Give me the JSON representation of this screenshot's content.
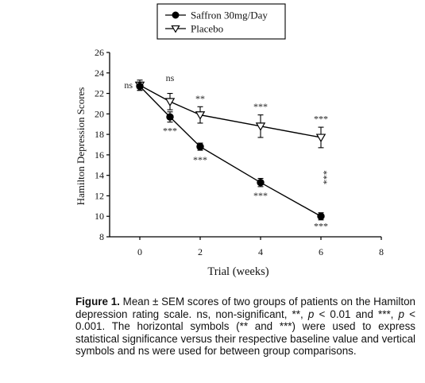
{
  "chart_data": {
    "type": "line",
    "xlabel": "Trial (weeks)",
    "ylabel": "Hamilton Depression Scores",
    "xlim": [
      -1,
      8
    ],
    "ylim": [
      8,
      26
    ],
    "xticks": [
      0,
      2,
      4,
      6,
      8
    ],
    "yticks": [
      8,
      10,
      12,
      14,
      16,
      18,
      20,
      22,
      24,
      26
    ],
    "grid": false,
    "legend_position": "top-center",
    "series": [
      {
        "name": "Saffron 30mg/Day",
        "marker": "filled-circle",
        "x": [
          0,
          1,
          2,
          4,
          6
        ],
        "y": [
          22.7,
          19.7,
          16.8,
          13.3,
          10.0
        ],
        "sem": [
          0.4,
          0.5,
          0.35,
          0.4,
          0.35
        ]
      },
      {
        "name": "Placebo",
        "marker": "open-triangle-down",
        "x": [
          0,
          1,
          2,
          4,
          6
        ],
        "y": [
          22.8,
          21.2,
          19.9,
          18.8,
          17.7
        ],
        "sem": [
          0.5,
          0.8,
          0.8,
          1.1,
          1.0
        ]
      }
    ],
    "annotations": [
      {
        "text": "ns",
        "x": 0,
        "y": 22.8,
        "anchor": "left",
        "orient": "h"
      },
      {
        "text": "ns",
        "x": 1,
        "y": 23.2,
        "anchor": "above",
        "orient": "h"
      },
      {
        "text": "**",
        "x": 2,
        "y": 21.2,
        "anchor": "above",
        "orient": "h"
      },
      {
        "text": "***",
        "x": 4,
        "y": 20.4,
        "anchor": "above",
        "orient": "h"
      },
      {
        "text": "***",
        "x": 6,
        "y": 19.2,
        "anchor": "above",
        "orient": "h"
      },
      {
        "text": "***",
        "x": 1,
        "y": 18.5,
        "anchor": "below",
        "orient": "h"
      },
      {
        "text": "***",
        "x": 2,
        "y": 15.7,
        "anchor": "below",
        "orient": "h"
      },
      {
        "text": "***",
        "x": 4,
        "y": 12.2,
        "anchor": "below",
        "orient": "h"
      },
      {
        "text": "***",
        "x": 6,
        "y": 9.2,
        "anchor": "below",
        "orient": "h"
      },
      {
        "text": "***",
        "x": 6,
        "y": 13.8,
        "anchor": "center",
        "orient": "v"
      }
    ]
  },
  "caption": {
    "label": "Figure 1.",
    "text_a": "Mean ± SEM scores of two groups of patients on the Hamilton depression rating scale. ns, non-significant, **,",
    "p1": "p",
    "text_b": "< 0.01 and ***,",
    "p2": "p",
    "text_c": "< 0.001. The horizontal symbols (** and ***) were used to express statistical significance versus their respective baseline value and vertical symbols and ns were used for between group comparisons."
  }
}
